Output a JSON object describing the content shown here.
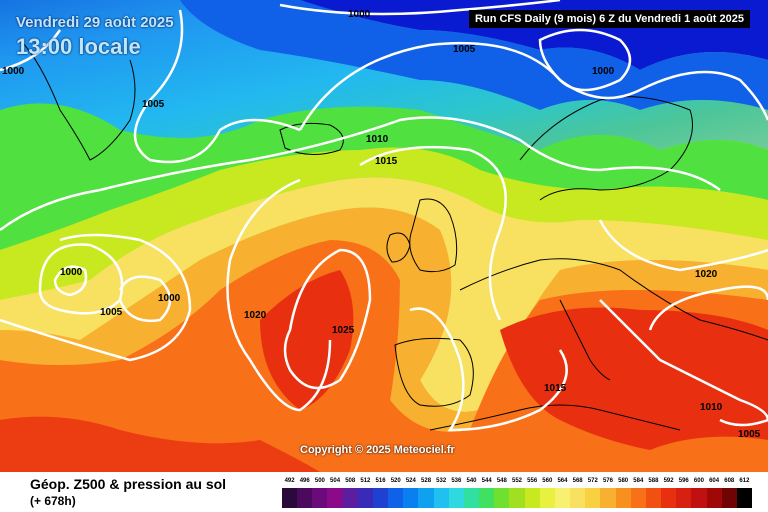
{
  "header": {
    "date": "Vendredi 29 août 2025",
    "time": "13:00 locale",
    "run_info": "Run CFS Daily (9 mois) 6 Z du Vendredi 1 août 2025"
  },
  "copyright": "Copyright © 2025 Meteociel.fr",
  "footer": {
    "product": "Géop. Z500 & pression au sol",
    "lead": "(+ 678h)"
  },
  "isobar_labels": [
    {
      "id": "iso-1000-north",
      "text": "1000"
    },
    {
      "id": "iso-1005-north",
      "text": "1005"
    },
    {
      "id": "iso-1000-west",
      "text": "1000"
    },
    {
      "id": "iso-1005-greenland",
      "text": "1005"
    },
    {
      "id": "iso-1000-scand",
      "text": "1000"
    },
    {
      "id": "iso-1010",
      "text": "1010"
    },
    {
      "id": "iso-1015-iceland",
      "text": "1015"
    },
    {
      "id": "iso-1000-low-a",
      "text": "1000"
    },
    {
      "id": "iso-1000-low-b",
      "text": "1000"
    },
    {
      "id": "iso-1005-atl",
      "text": "1005"
    },
    {
      "id": "iso-1020-atl",
      "text": "1020"
    },
    {
      "id": "iso-1025",
      "text": "1025"
    },
    {
      "id": "iso-1020-east",
      "text": "1020"
    },
    {
      "id": "iso-1015-med",
      "text": "1015"
    },
    {
      "id": "iso-1010-east",
      "text": "1010"
    },
    {
      "id": "iso-1005-east",
      "text": "1005"
    }
  ],
  "legend": {
    "values": [
      "492",
      "496",
      "500",
      "504",
      "508",
      "512",
      "516",
      "520",
      "524",
      "528",
      "532",
      "536",
      "540",
      "544",
      "548",
      "552",
      "556",
      "560",
      "564",
      "568",
      "572",
      "576",
      "580",
      "584",
      "588",
      "592",
      "596",
      "600",
      "604",
      "608",
      "612"
    ],
    "colors": [
      "#2a0a3a",
      "#4b0a5e",
      "#6b0a7a",
      "#8a0a8a",
      "#5b1ea0",
      "#3a2ab8",
      "#2040d0",
      "#1060e8",
      "#0a80f0",
      "#10a0f0",
      "#20c0f0",
      "#30d8e0",
      "#30e0a0",
      "#40e060",
      "#70e030",
      "#a0e020",
      "#c8e820",
      "#e8f040",
      "#f8f070",
      "#f8e060",
      "#f8d040",
      "#f8b030",
      "#f89020",
      "#f87018",
      "#f05010",
      "#e83010",
      "#d82010",
      "#c01010",
      "#a00808",
      "#700404",
      "#000000"
    ]
  }
}
